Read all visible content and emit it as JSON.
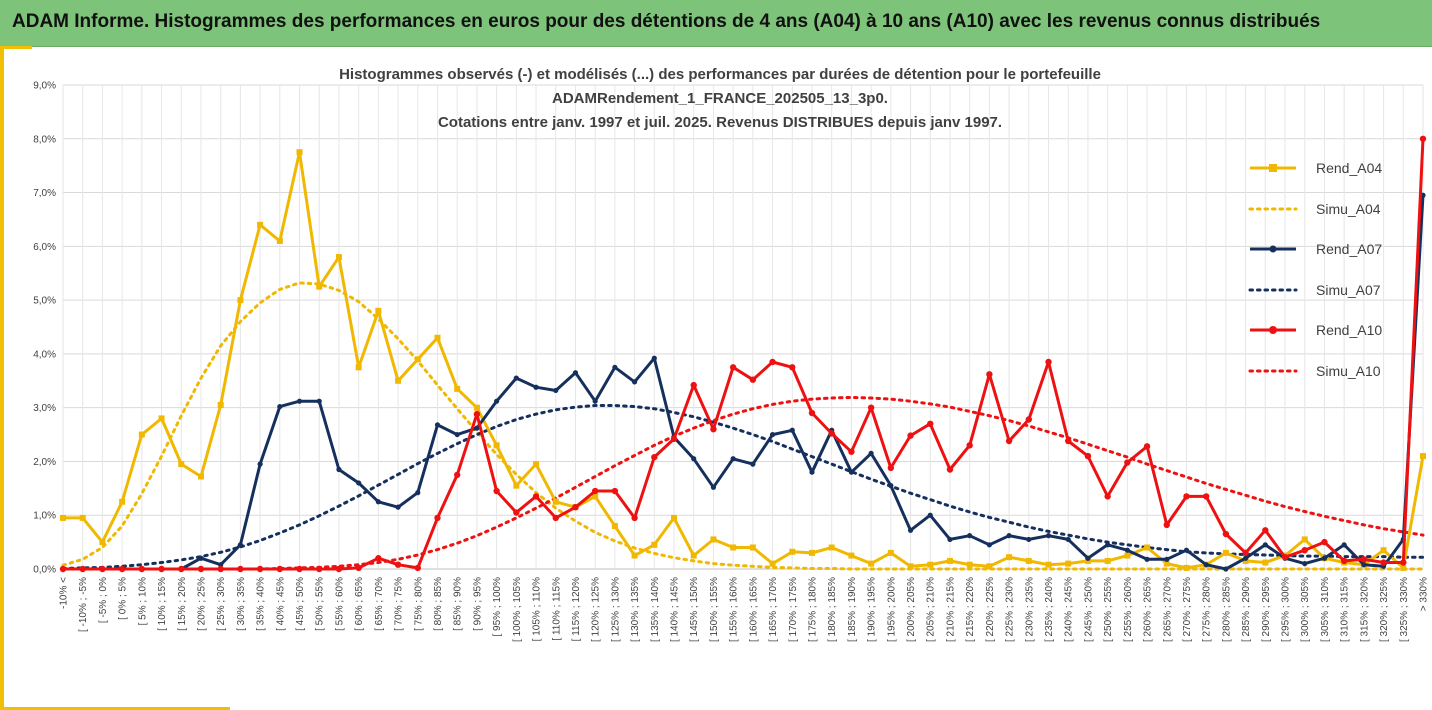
{
  "banner": {
    "title": "ADAM Informe. Histogrammes des performances en euros pour des détentions de 4 ans (A04) à 10 ans (A10) avec les revenus connus distribués"
  },
  "colors": {
    "banner_bg": "#7dc37a",
    "frame": "#f0c000",
    "a04": "#f0b800",
    "a07": "#16305e",
    "a10": "#ee1111"
  },
  "chart_data": {
    "type": "line",
    "title_lines": [
      "Histogrammes observés (-) et modélisés (...) des performances par durées de détention pour le portefeuille",
      "ADAMRendement_1_FRANCE_202505_13_3p0.",
      "Cotations entre janv. 1997 et juil. 2025. Revenus DISTRIBUES depuis janv 1997."
    ],
    "ylim": [
      0,
      9
    ],
    "yticks": [
      "0,0%",
      "1,0%",
      "2,0%",
      "3,0%",
      "4,0%",
      "5,0%",
      "6,0%",
      "7,0%",
      "8,0%",
      "9,0%"
    ],
    "grid": true,
    "legend_position": "right",
    "categories": [
      "-10% <",
      "[ -10% ; -5%",
      "[ -5% ; 0%",
      "[ 0% ; 5%",
      "[ 5% ; 10%",
      "[ 10% ; 15%",
      "[ 15% ; 20%",
      "[ 20% ; 25%",
      "[ 25% ; 30%",
      "[ 30% ; 35%",
      "[ 35% ; 40%",
      "[ 40% ; 45%",
      "[ 45% ; 50%",
      "[ 50% ; 55%",
      "[ 55% ; 60%",
      "[ 60% ; 65%",
      "[ 65% ; 70%",
      "[ 70% ; 75%",
      "[ 75% ; 80%",
      "[ 80% ; 85%",
      "[ 85% ; 90%",
      "[ 90% ; 95%",
      "[ 95% ; 100%",
      "[ 100% ; 105%",
      "[ 105% ; 110%",
      "[ 110% ; 115%",
      "[ 115% ; 120%",
      "[ 120% ; 125%",
      "[ 125% ; 130%",
      "[ 130% ; 135%",
      "[ 135% ; 140%",
      "[ 140% ; 145%",
      "[ 145% ; 150%",
      "[ 150% ; 155%",
      "[ 155% ; 160%",
      "[ 160% ; 165%",
      "[ 165% ; 170%",
      "[ 170% ; 175%",
      "[ 175% ; 180%",
      "[ 180% ; 185%",
      "[ 185% ; 190%",
      "[ 190% ; 195%",
      "[ 195% ; 200%",
      "[ 200% ; 205%",
      "[ 205% ; 210%",
      "[ 210% ; 215%",
      "[ 215% ; 220%",
      "[ 220% ; 225%",
      "[ 225% ; 230%",
      "[ 230% ; 235%",
      "[ 235% ; 240%",
      "[ 240% ; 245%",
      "[ 245% ; 250%",
      "[ 250% ; 255%",
      "[ 255% ; 260%",
      "[ 260% ; 265%",
      "[ 265% ; 270%",
      "[ 270% ; 275%",
      "[ 275% ; 280%",
      "[ 280% ; 285%",
      "[ 285% ; 290%",
      "[ 290% ; 295%",
      "[ 295% ; 300%",
      "[ 300% ; 305%",
      "[ 305% ; 310%",
      "[ 310% ; 315%",
      "[ 315% ; 320%",
      "[ 320% ; 325%",
      "[ 325% ; 330%",
      "> 330%"
    ],
    "series": [
      {
        "name": "Rend_A04",
        "color": "#f0b800",
        "style": "solid",
        "values": [
          0.95,
          0.95,
          0.5,
          1.25,
          2.5,
          2.8,
          1.95,
          1.72,
          3.05,
          5.0,
          6.4,
          6.1,
          7.75,
          5.25,
          5.8,
          3.75,
          4.8,
          3.5,
          3.9,
          4.3,
          3.35,
          3.0,
          2.3,
          1.55,
          1.95,
          1.25,
          1.15,
          1.35,
          0.8,
          0.25,
          0.45,
          0.95,
          0.25,
          0.55,
          0.4,
          0.4,
          0.1,
          0.32,
          0.3,
          0.4,
          0.25,
          0.1,
          0.3,
          0.05,
          0.08,
          0.15,
          0.08,
          0.05,
          0.22,
          0.15,
          0.08,
          0.1,
          0.15,
          0.15,
          0.25,
          0.4,
          0.1,
          0.02,
          0.08,
          0.3,
          0.15,
          0.12,
          0.25,
          0.55,
          0.2,
          0.12,
          0.08,
          0.35,
          0.02,
          2.1
        ]
      },
      {
        "name": "Simu_A04",
        "color": "#f0b800",
        "style": "dotted",
        "values": [
          0.07,
          0.18,
          0.4,
          0.8,
          1.4,
          2.1,
          2.85,
          3.55,
          4.15,
          4.6,
          4.95,
          5.2,
          5.32,
          5.3,
          5.18,
          4.97,
          4.65,
          4.28,
          3.87,
          3.42,
          2.98,
          2.55,
          2.13,
          1.76,
          1.42,
          1.13,
          0.89,
          0.68,
          0.52,
          0.39,
          0.29,
          0.21,
          0.15,
          0.1,
          0.07,
          0.05,
          0.03,
          0.02,
          0.01,
          0.01,
          0,
          0,
          0,
          0,
          0,
          0,
          0,
          0,
          0,
          0,
          0,
          0,
          0,
          0,
          0,
          0,
          0,
          0,
          0,
          0,
          0,
          0,
          0,
          0,
          0,
          0,
          0,
          0,
          0,
          0
        ]
      },
      {
        "name": "Rend_A07",
        "color": "#16305e",
        "style": "solid",
        "values": [
          0,
          0,
          0,
          0,
          0,
          0,
          0,
          0.2,
          0.08,
          0.45,
          1.95,
          3.02,
          3.12,
          3.12,
          1.85,
          1.6,
          1.25,
          1.15,
          1.42,
          2.68,
          2.5,
          2.62,
          3.12,
          3.55,
          3.38,
          3.32,
          3.65,
          3.12,
          3.75,
          3.48,
          3.92,
          2.45,
          2.05,
          1.52,
          2.05,
          1.95,
          2.5,
          2.58,
          1.8,
          2.58,
          1.8,
          2.15,
          1.55,
          0.72,
          1.0,
          0.55,
          0.62,
          0.45,
          0.62,
          0.55,
          0.62,
          0.55,
          0.2,
          0.45,
          0.35,
          0.18,
          0.18,
          0.35,
          0.08,
          0.0,
          0.2,
          0.45,
          0.2,
          0.1,
          0.2,
          0.45,
          0.08,
          0.05,
          0.55,
          6.95
        ]
      },
      {
        "name": "Simu_A07",
        "color": "#16305e",
        "style": "dotted",
        "values": [
          0.01,
          0.02,
          0.03,
          0.05,
          0.08,
          0.12,
          0.17,
          0.23,
          0.31,
          0.41,
          0.53,
          0.67,
          0.82,
          0.99,
          1.17,
          1.36,
          1.56,
          1.76,
          1.96,
          2.15,
          2.33,
          2.5,
          2.65,
          2.78,
          2.88,
          2.96,
          3.01,
          3.04,
          3.04,
          3.02,
          2.98,
          2.91,
          2.83,
          2.73,
          2.62,
          2.5,
          2.37,
          2.23,
          2.09,
          1.95,
          1.81,
          1.67,
          1.54,
          1.41,
          1.29,
          1.17,
          1.06,
          0.96,
          0.87,
          0.78,
          0.7,
          0.63,
          0.56,
          0.5,
          0.45,
          0.4,
          0.36,
          0.32,
          0.3,
          0.28,
          0.27,
          0.26,
          0.25,
          0.24,
          0.24,
          0.23,
          0.23,
          0.23,
          0.22,
          0.22
        ]
      },
      {
        "name": "Rend_A10",
        "color": "#ee1111",
        "style": "solid",
        "values": [
          0,
          0,
          0,
          0,
          0,
          0,
          0,
          0,
          0,
          0,
          0,
          0,
          0,
          0,
          0,
          0.02,
          0.2,
          0.08,
          0.02,
          0.95,
          1.75,
          2.88,
          1.45,
          1.05,
          1.35,
          0.95,
          1.15,
          1.45,
          1.45,
          0.95,
          2.08,
          2.42,
          3.42,
          2.6,
          3.75,
          3.52,
          3.85,
          3.75,
          2.9,
          2.52,
          2.18,
          3.0,
          1.88,
          2.48,
          2.7,
          1.85,
          2.3,
          3.62,
          2.38,
          2.78,
          3.85,
          2.38,
          2.1,
          1.35,
          1.98,
          2.28,
          0.82,
          1.35,
          1.35,
          0.65,
          0.3,
          0.72,
          0.22,
          0.35,
          0.5,
          0.15,
          0.18,
          0.12,
          0.12,
          8.0
        ]
      },
      {
        "name": "Simu_A10",
        "color": "#ee1111",
        "style": "dotted",
        "values": [
          0,
          0,
          0,
          0,
          0,
          0,
          0,
          0,
          0,
          0,
          0,
          0.01,
          0.02,
          0.03,
          0.05,
          0.08,
          0.12,
          0.18,
          0.26,
          0.36,
          0.48,
          0.62,
          0.78,
          0.95,
          1.13,
          1.32,
          1.52,
          1.72,
          1.92,
          2.11,
          2.3,
          2.47,
          2.62,
          2.76,
          2.88,
          2.98,
          3.06,
          3.12,
          3.16,
          3.18,
          3.19,
          3.18,
          3.16,
          3.12,
          3.07,
          3.01,
          2.93,
          2.85,
          2.76,
          2.66,
          2.55,
          2.44,
          2.32,
          2.2,
          2.08,
          1.95,
          1.83,
          1.71,
          1.59,
          1.48,
          1.37,
          1.26,
          1.16,
          1.07,
          0.98,
          0.9,
          0.82,
          0.75,
          0.69,
          0.63
        ]
      }
    ]
  }
}
